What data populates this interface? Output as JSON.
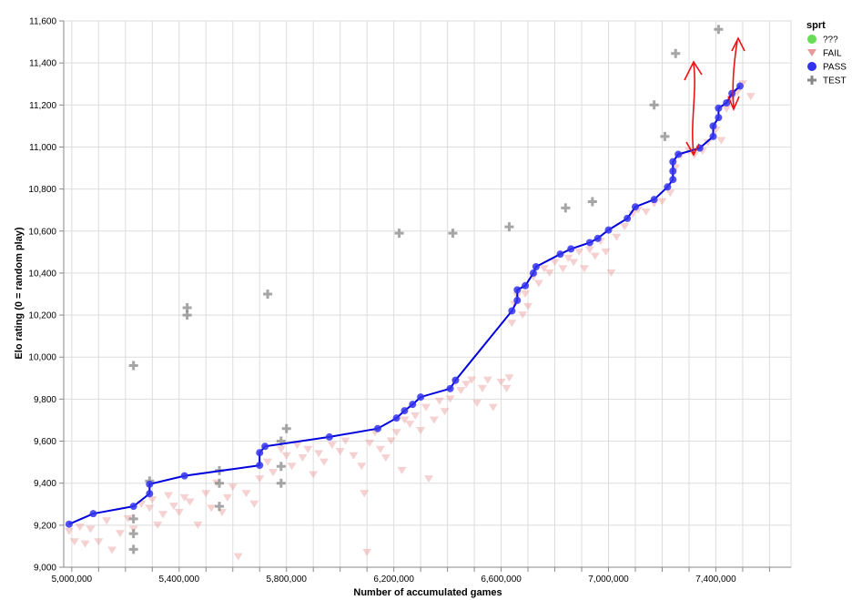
{
  "chart_data": {
    "type": "scatter",
    "title": "",
    "xlabel": "Number of accumulated games",
    "ylabel": "Elo rating (0 = random play)",
    "xlim": [
      4970000,
      7680000
    ],
    "ylim": [
      9000,
      11600
    ],
    "x_ticks": [
      5000000,
      5400000,
      5800000,
      6200000,
      6600000,
      7000000,
      7400000
    ],
    "x_tick_labels": [
      "5,000,000",
      "5,400,000",
      "5,800,000",
      "6,200,000",
      "6,600,000",
      "7,000,000",
      "7,400,000"
    ],
    "y_ticks": [
      9000,
      9200,
      9400,
      9600,
      9800,
      10000,
      10200,
      10400,
      10600,
      10800,
      11000,
      11200,
      11400,
      11600
    ],
    "y_tick_labels": [
      "9,000",
      "9,200",
      "9,400",
      "9,600",
      "9,800",
      "10,000",
      "10,200",
      "10,400",
      "10,600",
      "10,800",
      "11,000",
      "11,200",
      "11,400",
      "11,600"
    ],
    "grid": true,
    "legend": {
      "title": "sprt",
      "position": "top-right",
      "entries": [
        {
          "label": "???",
          "color": "#66dd55",
          "shape": "circle"
        },
        {
          "label": "FAIL",
          "color": "#e89a9a",
          "shape": "triangle-down"
        },
        {
          "label": "PASS",
          "color": "#3333ee",
          "shape": "circle"
        },
        {
          "label": "TEST",
          "color": "#888888",
          "shape": "cross"
        }
      ]
    },
    "series": [
      {
        "name": "PASS",
        "color": "#3333ee",
        "line": true,
        "points": [
          [
            4990000,
            9205
          ],
          [
            5080000,
            9255
          ],
          [
            5230000,
            9290
          ],
          [
            5290000,
            9350
          ],
          [
            5290000,
            9395
          ],
          [
            5420000,
            9435
          ],
          [
            5700000,
            9485
          ],
          [
            5700000,
            9545
          ],
          [
            5720000,
            9575
          ],
          [
            5960000,
            9620
          ],
          [
            6140000,
            9660
          ],
          [
            6210000,
            9710
          ],
          [
            6240000,
            9745
          ],
          [
            6270000,
            9775
          ],
          [
            6300000,
            9810
          ],
          [
            6410000,
            9850
          ],
          [
            6430000,
            9890
          ],
          [
            6640000,
            10220
          ],
          [
            6660000,
            10270
          ],
          [
            6660000,
            10320
          ],
          [
            6690000,
            10340
          ],
          [
            6720000,
            10400
          ],
          [
            6730000,
            10430
          ],
          [
            6820000,
            10490
          ],
          [
            6860000,
            10515
          ],
          [
            6930000,
            10545
          ],
          [
            6960000,
            10565
          ],
          [
            7000000,
            10605
          ],
          [
            7070000,
            10660
          ],
          [
            7100000,
            10715
          ],
          [
            7170000,
            10750
          ],
          [
            7220000,
            10810
          ],
          [
            7240000,
            10845
          ],
          [
            7240000,
            10885
          ],
          [
            7240000,
            10930
          ],
          [
            7260000,
            10965
          ],
          [
            7340000,
            10995
          ],
          [
            7390000,
            11050
          ],
          [
            7390000,
            11100
          ],
          [
            7410000,
            11140
          ],
          [
            7410000,
            11185
          ],
          [
            7440000,
            11210
          ],
          [
            7460000,
            11255
          ],
          [
            7490000,
            11290
          ]
        ]
      },
      {
        "name": "FAIL",
        "color": "#e89a9a",
        "points": [
          [
            4990000,
            9170
          ],
          [
            5010000,
            9120
          ],
          [
            5030000,
            9190
          ],
          [
            5050000,
            9110
          ],
          [
            5070000,
            9180
          ],
          [
            5100000,
            9120
          ],
          [
            5130000,
            9220
          ],
          [
            5150000,
            9080
          ],
          [
            5180000,
            9160
          ],
          [
            5210000,
            9230
          ],
          [
            5230000,
            9180
          ],
          [
            5260000,
            9300
          ],
          [
            5290000,
            9280
          ],
          [
            5300000,
            9320
          ],
          [
            5320000,
            9200
          ],
          [
            5340000,
            9250
          ],
          [
            5360000,
            9340
          ],
          [
            5380000,
            9290
          ],
          [
            5400000,
            9260
          ],
          [
            5420000,
            9330
          ],
          [
            5440000,
            9310
          ],
          [
            5470000,
            9200
          ],
          [
            5500000,
            9350
          ],
          [
            5520000,
            9280
          ],
          [
            5540000,
            9400
          ],
          [
            5560000,
            9260
          ],
          [
            5580000,
            9330
          ],
          [
            5600000,
            9380
          ],
          [
            5620000,
            9050
          ],
          [
            5650000,
            9350
          ],
          [
            5680000,
            9300
          ],
          [
            5700000,
            9420
          ],
          [
            5730000,
            9500
          ],
          [
            5750000,
            9450
          ],
          [
            5780000,
            9560
          ],
          [
            5800000,
            9530
          ],
          [
            5820000,
            9480
          ],
          [
            5840000,
            9580
          ],
          [
            5860000,
            9520
          ],
          [
            5880000,
            9560
          ],
          [
            5900000,
            9440
          ],
          [
            5920000,
            9540
          ],
          [
            5940000,
            9500
          ],
          [
            5970000,
            9580
          ],
          [
            6000000,
            9550
          ],
          [
            6020000,
            9600
          ],
          [
            6050000,
            9530
          ],
          [
            6080000,
            9480
          ],
          [
            6090000,
            9350
          ],
          [
            6100000,
            9070
          ],
          [
            6110000,
            9590
          ],
          [
            6130000,
            9640
          ],
          [
            6150000,
            9560
          ],
          [
            6170000,
            9520
          ],
          [
            6190000,
            9600
          ],
          [
            6210000,
            9640
          ],
          [
            6230000,
            9460
          ],
          [
            6240000,
            9700
          ],
          [
            6260000,
            9680
          ],
          [
            6280000,
            9720
          ],
          [
            6300000,
            9650
          ],
          [
            6320000,
            9760
          ],
          [
            6330000,
            9420
          ],
          [
            6350000,
            9700
          ],
          [
            6370000,
            9790
          ],
          [
            6390000,
            9740
          ],
          [
            6410000,
            9800
          ],
          [
            6430000,
            9880
          ],
          [
            6450000,
            9840
          ],
          [
            6470000,
            9870
          ],
          [
            6490000,
            9890
          ],
          [
            6510000,
            9780
          ],
          [
            6530000,
            9850
          ],
          [
            6550000,
            9890
          ],
          [
            6570000,
            9760
          ],
          [
            6600000,
            9880
          ],
          [
            6620000,
            9850
          ],
          [
            6630000,
            9900
          ],
          [
            6640000,
            10160
          ],
          [
            6650000,
            10250
          ],
          [
            6660000,
            10290
          ],
          [
            6680000,
            10200
          ],
          [
            6690000,
            10300
          ],
          [
            6700000,
            10240
          ],
          [
            6720000,
            10380
          ],
          [
            6740000,
            10350
          ],
          [
            6760000,
            10420
          ],
          [
            6780000,
            10400
          ],
          [
            6800000,
            10450
          ],
          [
            6830000,
            10420
          ],
          [
            6850000,
            10470
          ],
          [
            6870000,
            10450
          ],
          [
            6890000,
            10500
          ],
          [
            6910000,
            10420
          ],
          [
            6930000,
            10510
          ],
          [
            6950000,
            10480
          ],
          [
            6970000,
            10550
          ],
          [
            6990000,
            10500
          ],
          [
            7010000,
            10400
          ],
          [
            7030000,
            10570
          ],
          [
            7060000,
            10620
          ],
          [
            7090000,
            10680
          ],
          [
            7110000,
            10700
          ],
          [
            7140000,
            10690
          ],
          [
            7170000,
            10730
          ],
          [
            7200000,
            10740
          ],
          [
            7230000,
            10780
          ],
          [
            7250000,
            10900
          ],
          [
            7270000,
            10960
          ],
          [
            7300000,
            10980
          ],
          [
            7320000,
            10960
          ],
          [
            7350000,
            10980
          ],
          [
            7370000,
            11020
          ],
          [
            7400000,
            11080
          ],
          [
            7420000,
            11030
          ],
          [
            7440000,
            11180
          ],
          [
            7460000,
            11230
          ],
          [
            7480000,
            11260
          ],
          [
            7500000,
            11300
          ],
          [
            7530000,
            11240
          ]
        ]
      },
      {
        "name": "TEST",
        "color": "#888888",
        "points": [
          [
            5230000,
            9960
          ],
          [
            5230000,
            9230
          ],
          [
            5230000,
            9160
          ],
          [
            5230000,
            9085
          ],
          [
            5290000,
            9410
          ],
          [
            5430000,
            10235
          ],
          [
            5430000,
            10200
          ],
          [
            5550000,
            9460
          ],
          [
            5550000,
            9400
          ],
          [
            5550000,
            9290
          ],
          [
            5730000,
            10300
          ],
          [
            5780000,
            9600
          ],
          [
            5780000,
            9480
          ],
          [
            5780000,
            9400
          ],
          [
            5800000,
            9660
          ],
          [
            6220000,
            10590
          ],
          [
            6420000,
            10590
          ],
          [
            6630000,
            10620
          ],
          [
            6840000,
            10710
          ],
          [
            6940000,
            10740
          ],
          [
            7170000,
            11200
          ],
          [
            7210000,
            11050
          ],
          [
            7250000,
            11445
          ],
          [
            7410000,
            11560
          ]
        ]
      }
    ]
  }
}
